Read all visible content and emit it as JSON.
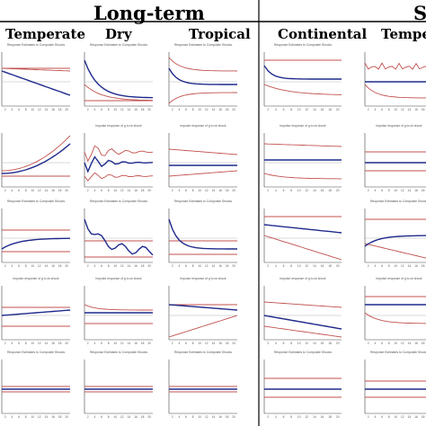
{
  "figure": {
    "header_left": "Long-term",
    "header_right": "S",
    "columns": [
      "Temperate",
      "Dry",
      "Tropical",
      "Continental",
      "Tempera"
    ],
    "panel_caption_response": "Response Estimates to Composite Shocks",
    "panel_caption_impulse": "Impulse response of g to ck shock",
    "colors": {
      "mean": "#1f2a8c",
      "band": "#c0504d",
      "frame": "#444444",
      "grid": "#b5b5b5"
    }
  },
  "chart_data": {
    "type": "line",
    "layout": "grid of impulse-response panels, 5 columns x 5 rows",
    "x_ticks": [
      2,
      4,
      6,
      8,
      10,
      12,
      14,
      16,
      18,
      20
    ],
    "series_legend": [
      "mean response (blue)",
      "confidence bands (red)"
    ],
    "panels_approx": [
      {
        "row": 1,
        "col": "Temperate",
        "mean_trend": "declining",
        "band": "narrowing"
      },
      {
        "row": 1,
        "col": "Dry",
        "mean_trend": "declining to zero",
        "band": "converging"
      },
      {
        "row": 1,
        "col": "Tropical",
        "mean_trend": "spike then flat",
        "band": "converging"
      },
      {
        "row": 1,
        "col": "Continental",
        "mean_trend": "drop then flat",
        "band": "widening"
      },
      {
        "row": 1,
        "col": "Tempera",
        "mean_trend": "flat",
        "band": "oscillating"
      },
      {
        "row": 2,
        "col": "Temperate",
        "mean_trend": "rising",
        "band": "widening"
      },
      {
        "row": 2,
        "col": "Dry",
        "mean_trend": "oscillating decay",
        "band": "oscillating"
      },
      {
        "row": 2,
        "col": "Tropical",
        "mean_trend": "flat",
        "band": "converging"
      },
      {
        "row": 2,
        "col": "Continental",
        "mean_trend": "flat",
        "band": "converging"
      },
      {
        "row": 2,
        "col": "Tempera",
        "mean_trend": "flat",
        "band": "narrow"
      }
    ]
  }
}
